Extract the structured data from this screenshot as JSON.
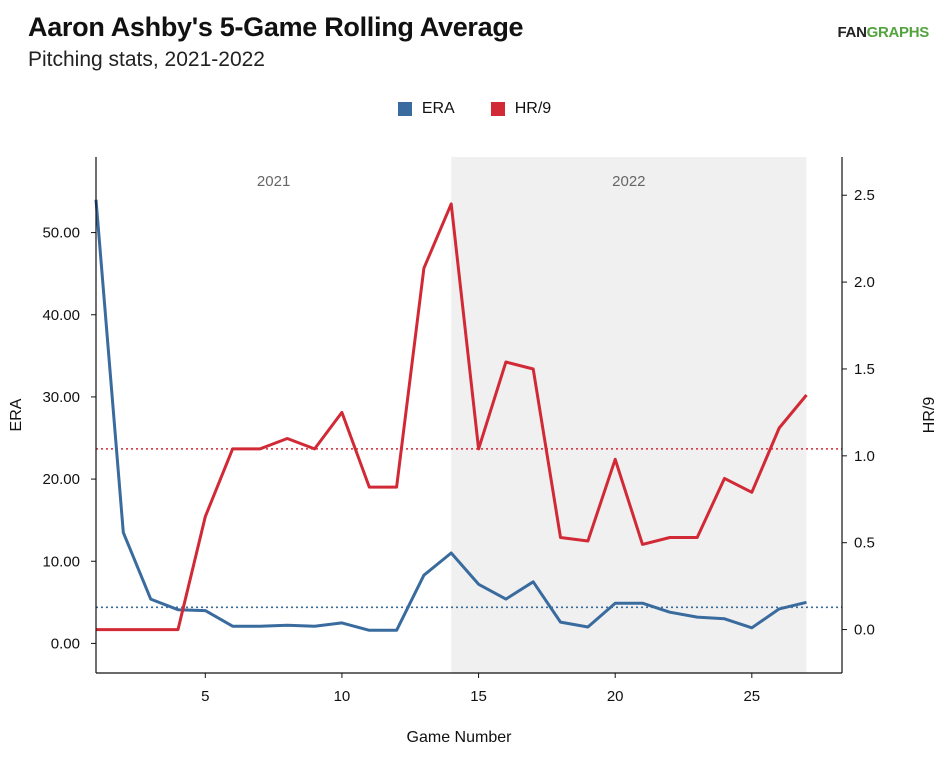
{
  "header": {
    "title": "Aaron Ashby's 5-Game Rolling Average",
    "subtitle": "Pitching stats, 2021-2022",
    "logo_left": "FAN",
    "logo_right": "GRAPHS"
  },
  "colors": {
    "era": "#3a6b9e",
    "hr9": "#d12a36",
    "season_shade": "#f0f0f0",
    "axis": "#111111"
  },
  "chart_data": {
    "type": "line",
    "xlabel": "Game Number",
    "ylabel_left": "ERA",
    "ylabel_right": "HR/9",
    "xlim": [
      1,
      28.3
    ],
    "ylim_left": [
      -3.6,
      59.2
    ],
    "ylim_right": [
      -0.25,
      2.72
    ],
    "x_ticks": [
      5,
      10,
      15,
      20,
      25
    ],
    "y_left_ticks": [
      0,
      10,
      20,
      30,
      40,
      50
    ],
    "y_left_tick_labels": [
      "0.00",
      "10.00",
      "20.00",
      "30.00",
      "40.00",
      "50.00"
    ],
    "y_right_ticks": [
      0,
      0.5,
      1,
      1.5,
      2,
      2.5
    ],
    "y_right_tick_labels": [
      "0.0",
      "0.5",
      "1.0",
      "1.5",
      "2.0",
      "2.5"
    ],
    "seasons": [
      {
        "label": "2021",
        "start": 1,
        "end": 14,
        "shaded": false
      },
      {
        "label": "2022",
        "start": 14,
        "end": 27,
        "shaded": true
      }
    ],
    "legend_position": "top-center",
    "grid": false,
    "x": [
      1,
      2,
      3,
      4,
      5,
      6,
      7,
      8,
      9,
      10,
      11,
      12,
      13,
      14,
      15,
      16,
      17,
      18,
      19,
      20,
      21,
      22,
      23,
      24,
      25,
      26,
      27
    ],
    "series": [
      {
        "name": "ERA",
        "axis": "left",
        "values": [
          54.0,
          13.5,
          5.4,
          4.1,
          4.0,
          2.1,
          2.1,
          2.2,
          2.1,
          2.5,
          1.6,
          1.6,
          8.3,
          11.0,
          7.2,
          5.4,
          7.5,
          2.6,
          2.0,
          4.9,
          4.9,
          3.8,
          3.2,
          3.0,
          1.9,
          4.2,
          5.0
        ],
        "mean": 4.4
      },
      {
        "name": "HR/9",
        "axis": "right",
        "values": [
          0.0,
          0.0,
          0.0,
          0.0,
          0.65,
          1.04,
          1.04,
          1.1,
          1.04,
          1.25,
          0.82,
          0.82,
          2.08,
          2.45,
          1.04,
          1.54,
          1.5,
          0.53,
          0.51,
          0.98,
          0.49,
          0.53,
          0.53,
          0.87,
          0.79,
          1.16,
          1.35
        ],
        "mean": 1.04
      }
    ]
  }
}
